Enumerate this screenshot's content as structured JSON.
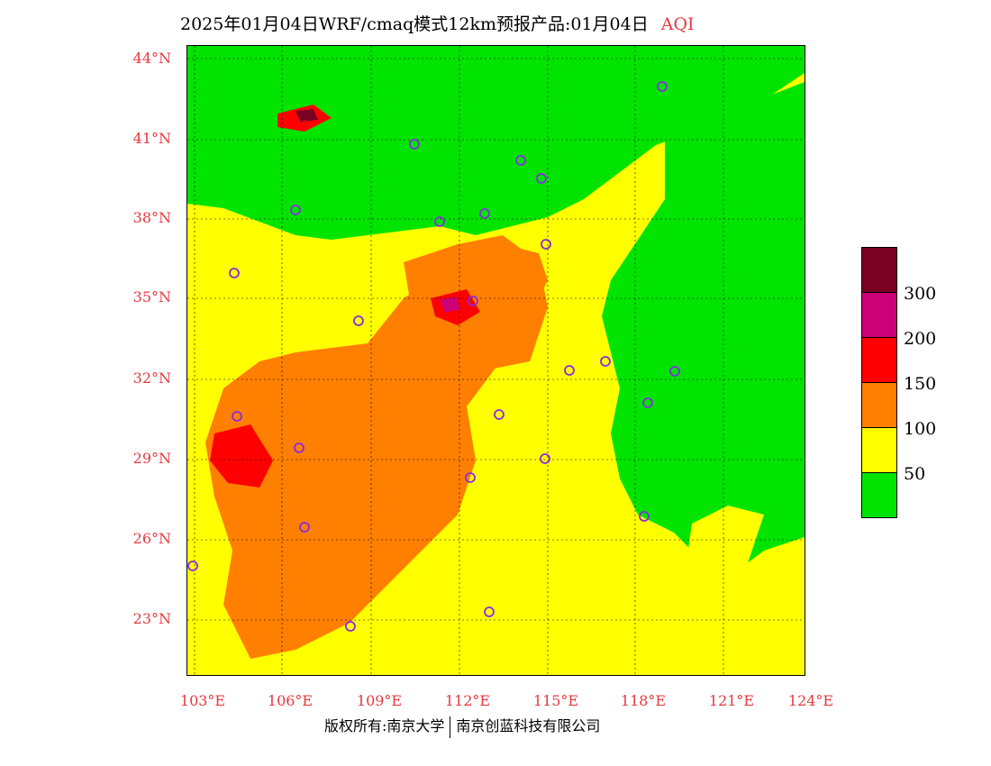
{
  "title": {
    "text": "2025年01月04日WRF/cmaq模式12km预报产品:01月04日",
    "variable": "AQI"
  },
  "latitude_labels": [
    "44°N",
    "41°N",
    "38°N",
    "35°N",
    "32°N",
    "29°N",
    "26°N",
    "23°N"
  ],
  "longitude_labels": [
    "103°E",
    "106°E",
    "109°E",
    "112°E",
    "115°E",
    "118°E",
    "121°E",
    "124°E"
  ],
  "legend": {
    "colors": [
      "#7a0024",
      "#cc0077",
      "#ff0000",
      "#ff7f00",
      "#ffff00",
      "#00e400"
    ],
    "labels": [
      "300",
      "200",
      "150",
      "100",
      "50"
    ]
  },
  "footer": {
    "left": "版权所有:南京大学",
    "right": "南京创蓝科技有限公司"
  }
}
